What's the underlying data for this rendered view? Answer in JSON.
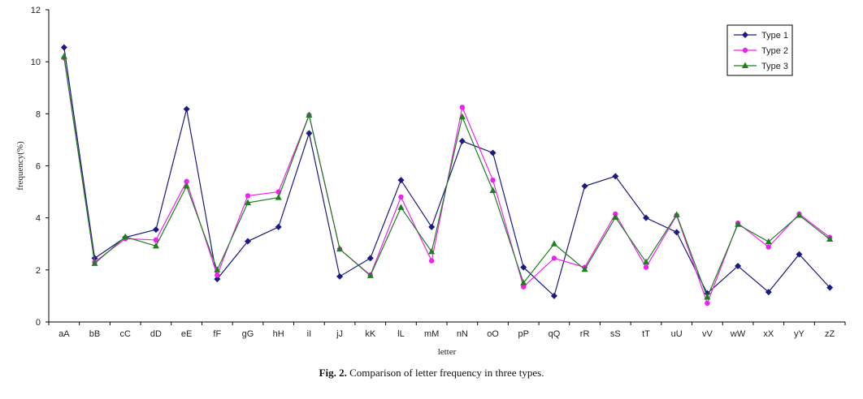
{
  "chart_data": {
    "type": "line",
    "xlabel": "letter",
    "ylabel": "frequency(%)",
    "ylim": [
      0,
      12
    ],
    "yticks": [
      0,
      2,
      4,
      6,
      8,
      10,
      12
    ],
    "grid": false,
    "legend_position": "top-right",
    "categories": [
      "aA",
      "bB",
      "cC",
      "dD",
      "eE",
      "fF",
      "gG",
      "hH",
      "iI",
      "jJ",
      "kK",
      "lL",
      "mM",
      "nN",
      "oO",
      "pP",
      "qQ",
      "rR",
      "sS",
      "tT",
      "uU",
      "vV",
      "wW",
      "xX",
      "yY",
      "zZ"
    ],
    "series": [
      {
        "name": "Type 1",
        "color": "#1a1a80",
        "marker": "diamond",
        "values": [
          10.55,
          2.45,
          3.25,
          3.55,
          8.18,
          1.65,
          3.1,
          3.65,
          7.25,
          1.75,
          2.45,
          5.45,
          3.65,
          6.95,
          6.5,
          2.1,
          1.0,
          5.22,
          5.6,
          4.0,
          3.45,
          1.1,
          2.15,
          1.15,
          2.6,
          1.32
        ]
      },
      {
        "name": "Type 2",
        "color": "#ee22ee",
        "marker": "circle",
        "values": [
          10.15,
          2.3,
          3.2,
          3.15,
          5.4,
          1.8,
          4.85,
          5.0,
          7.95,
          2.8,
          1.8,
          4.8,
          2.35,
          8.25,
          5.45,
          1.35,
          2.45,
          2.1,
          4.15,
          2.1,
          4.1,
          0.72,
          3.8,
          2.88,
          4.15,
          3.25
        ]
      },
      {
        "name": "Type 3",
        "color": "#1f7f1f",
        "marker": "triangle",
        "values": [
          10.2,
          2.25,
          3.27,
          2.92,
          5.22,
          2.0,
          4.58,
          4.78,
          7.95,
          2.8,
          1.78,
          4.4,
          2.7,
          7.88,
          5.05,
          1.5,
          3.0,
          2.02,
          4.02,
          2.3,
          4.12,
          0.95,
          3.75,
          3.08,
          4.1,
          3.18
        ]
      }
    ]
  },
  "caption": {
    "label": "Fig. 2.",
    "text": "Comparison of letter frequency in three types."
  }
}
